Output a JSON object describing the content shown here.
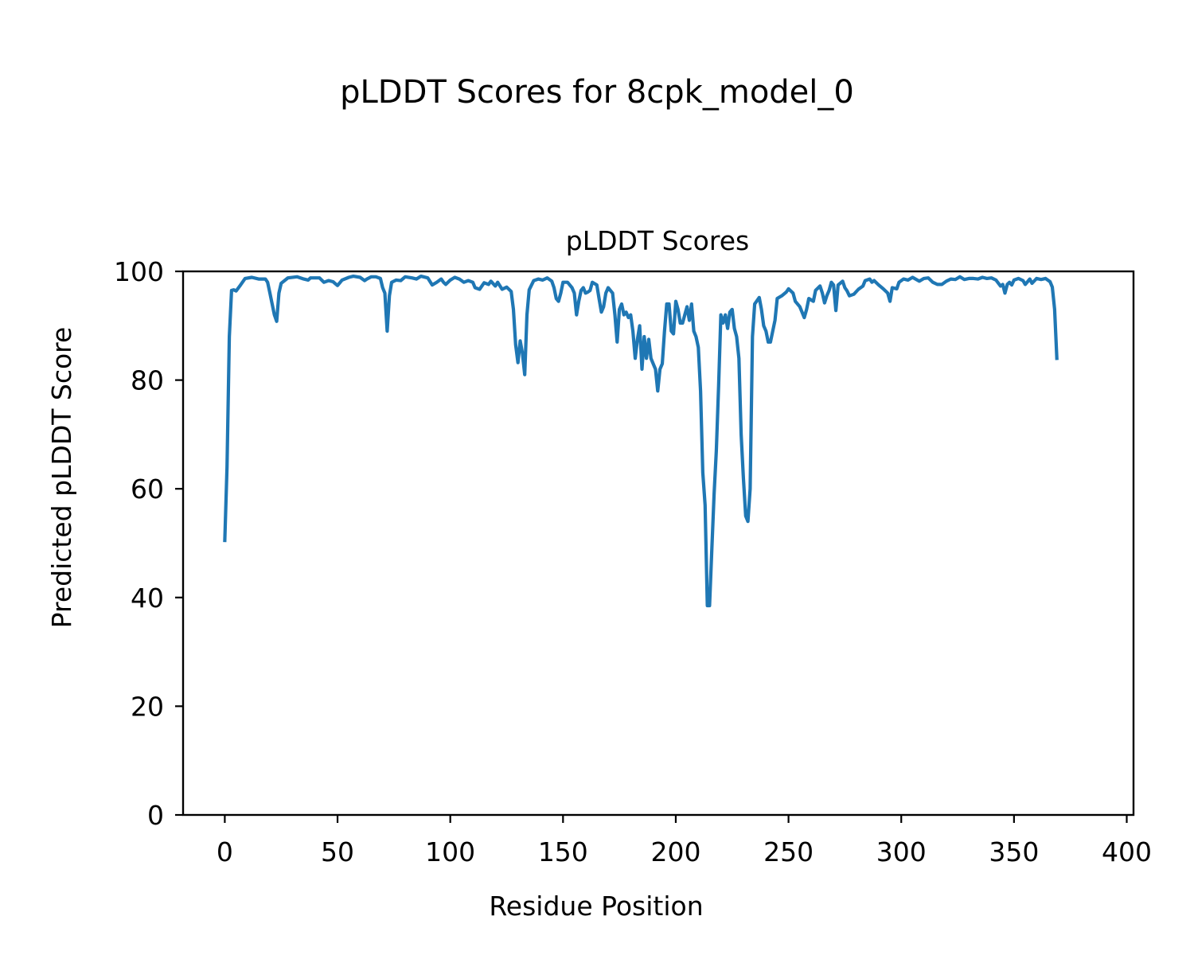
{
  "figure": {
    "suptitle": "pLDDT Scores for 8cpk_model_0"
  },
  "chart_data": {
    "type": "line",
    "title": "pLDDT Scores",
    "xlabel": "Residue Position",
    "ylabel": "Predicted pLDDT Score",
    "xlim": [
      -18.5,
      403
    ],
    "ylim": [
      0,
      100
    ],
    "xticks": [
      0,
      50,
      100,
      150,
      200,
      250,
      300,
      350,
      400
    ],
    "yticks": [
      0,
      20,
      40,
      60,
      80,
      100
    ],
    "grid": false,
    "line_color": "#1f77b4",
    "series": [
      {
        "points": [
          [
            0,
            50.5
          ],
          [
            1,
            64
          ],
          [
            2,
            88
          ],
          [
            3,
            96.5
          ],
          [
            4,
            96.6
          ],
          [
            5,
            96.4
          ],
          [
            7,
            97.5
          ],
          [
            9,
            98.7
          ],
          [
            12,
            98.9
          ],
          [
            15,
            98.6
          ],
          [
            18,
            98.6
          ],
          [
            19,
            98
          ],
          [
            20,
            96
          ],
          [
            21,
            94
          ],
          [
            22,
            92
          ],
          [
            23,
            90.8
          ],
          [
            24,
            96
          ],
          [
            25,
            97.8
          ],
          [
            28,
            98.8
          ],
          [
            32,
            99
          ],
          [
            35,
            98.6
          ],
          [
            37,
            98.4
          ],
          [
            38,
            98.8
          ],
          [
            42,
            98.8
          ],
          [
            44,
            98
          ],
          [
            46,
            98.3
          ],
          [
            48,
            98.1
          ],
          [
            50,
            97.4
          ],
          [
            52,
            98.4
          ],
          [
            55,
            98.9
          ],
          [
            57,
            99.1
          ],
          [
            60,
            98.9
          ],
          [
            62,
            98.3
          ],
          [
            63,
            98.6
          ],
          [
            65,
            99
          ],
          [
            67,
            99
          ],
          [
            69,
            98.7
          ],
          [
            70,
            97
          ],
          [
            71,
            96
          ],
          [
            72,
            89
          ],
          [
            73,
            95.5
          ],
          [
            74,
            98
          ],
          [
            76,
            98.4
          ],
          [
            78,
            98.3
          ],
          [
            80,
            99
          ],
          [
            83,
            98.8
          ],
          [
            85,
            98.6
          ],
          [
            87,
            99.1
          ],
          [
            90,
            98.8
          ],
          [
            92,
            97.5
          ],
          [
            94,
            98
          ],
          [
            96,
            98.6
          ],
          [
            97,
            98
          ],
          [
            98,
            97.6
          ],
          [
            100,
            98.4
          ],
          [
            102,
            98.9
          ],
          [
            104,
            98.6
          ],
          [
            106,
            98
          ],
          [
            108,
            98.3
          ],
          [
            110,
            98
          ],
          [
            111,
            97
          ],
          [
            113,
            96.7
          ],
          [
            115,
            97.9
          ],
          [
            117,
            97.6
          ],
          [
            118,
            98.2
          ],
          [
            120,
            97.3
          ],
          [
            121,
            98
          ],
          [
            123,
            96.7
          ],
          [
            125,
            97.1
          ],
          [
            127,
            96.3
          ],
          [
            128,
            93
          ],
          [
            129,
            86.5
          ],
          [
            130,
            83.2
          ],
          [
            131,
            87.2
          ],
          [
            132,
            85
          ],
          [
            133,
            81
          ],
          [
            134,
            92
          ],
          [
            135,
            96.6
          ],
          [
            137,
            98.3
          ],
          [
            139,
            98.6
          ],
          [
            141,
            98.4
          ],
          [
            143,
            98.8
          ],
          [
            145,
            98.2
          ],
          [
            146,
            97
          ],
          [
            147,
            95
          ],
          [
            148,
            94.5
          ],
          [
            149,
            96
          ],
          [
            150,
            98
          ],
          [
            152,
            98
          ],
          [
            154,
            97
          ],
          [
            155,
            96
          ],
          [
            156,
            92
          ],
          [
            157,
            94.5
          ],
          [
            158,
            96.5
          ],
          [
            159,
            97
          ],
          [
            160,
            96
          ],
          [
            161,
            96.2
          ],
          [
            162,
            96.5
          ],
          [
            163,
            98
          ],
          [
            165,
            97.5
          ],
          [
            166,
            95
          ],
          [
            167,
            92.5
          ],
          [
            168,
            93.5
          ],
          [
            169,
            96
          ],
          [
            170,
            97
          ],
          [
            172,
            96
          ],
          [
            173,
            92
          ],
          [
            174,
            87
          ],
          [
            175,
            93
          ],
          [
            176,
            94
          ],
          [
            177,
            92
          ],
          [
            178,
            92.5
          ],
          [
            179,
            91.5
          ],
          [
            180,
            92
          ],
          [
            181,
            89
          ],
          [
            182,
            84
          ],
          [
            183,
            87.5
          ],
          [
            184,
            90
          ],
          [
            185,
            82
          ],
          [
            186,
            88
          ],
          [
            187,
            84
          ],
          [
            188,
            87.5
          ],
          [
            189,
            84
          ],
          [
            190,
            83
          ],
          [
            191,
            82
          ],
          [
            192,
            78
          ],
          [
            193,
            82
          ],
          [
            194,
            83
          ],
          [
            195,
            89
          ],
          [
            196,
            94
          ],
          [
            197,
            94
          ],
          [
            198,
            89
          ],
          [
            199,
            88.5
          ],
          [
            200,
            94.5
          ],
          [
            201,
            93
          ],
          [
            202,
            90.5
          ],
          [
            203,
            90.5
          ],
          [
            204,
            92
          ],
          [
            205,
            93.5
          ],
          [
            206,
            91
          ],
          [
            207,
            94
          ],
          [
            208,
            89
          ],
          [
            209,
            88
          ],
          [
            210,
            86
          ],
          [
            211,
            78
          ],
          [
            212,
            63
          ],
          [
            213,
            57
          ],
          [
            214,
            38.5
          ],
          [
            215,
            38.5
          ],
          [
            216,
            49
          ],
          [
            217,
            59
          ],
          [
            218,
            67
          ],
          [
            219,
            79
          ],
          [
            220,
            92
          ],
          [
            221,
            90.5
          ],
          [
            222,
            92
          ],
          [
            223,
            89.5
          ],
          [
            224,
            92.5
          ],
          [
            225,
            93
          ],
          [
            226,
            89.5
          ],
          [
            227,
            88
          ],
          [
            228,
            84
          ],
          [
            229,
            70
          ],
          [
            230,
            62
          ],
          [
            231,
            55
          ],
          [
            232,
            54
          ],
          [
            233,
            60
          ],
          [
            234,
            88
          ],
          [
            235,
            94
          ],
          [
            237,
            95.2
          ],
          [
            238,
            93
          ],
          [
            239,
            90
          ],
          [
            240,
            89
          ],
          [
            241,
            87
          ],
          [
            242,
            87
          ],
          [
            244,
            91
          ],
          [
            245,
            95
          ],
          [
            247,
            95.5
          ],
          [
            249,
            96.2
          ],
          [
            250,
            96.8
          ],
          [
            252,
            96
          ],
          [
            253,
            94.5
          ],
          [
            255,
            93.5
          ],
          [
            257,
            91.5
          ],
          [
            258,
            93
          ],
          [
            259,
            95
          ],
          [
            261,
            94.5
          ],
          [
            262,
            96.5
          ],
          [
            264,
            97.3
          ],
          [
            265,
            96
          ],
          [
            266,
            94.2
          ],
          [
            267,
            95.5
          ],
          [
            268,
            96.5
          ],
          [
            269,
            98
          ],
          [
            270,
            97.5
          ],
          [
            271,
            92.8
          ],
          [
            272,
            97.5
          ],
          [
            274,
            98.2
          ],
          [
            275,
            97
          ],
          [
            276,
            96.4
          ],
          [
            277,
            95.5
          ],
          [
            279,
            95.8
          ],
          [
            281,
            96.7
          ],
          [
            283,
            97.3
          ],
          [
            284,
            98.3
          ],
          [
            286,
            98.6
          ],
          [
            287,
            98
          ],
          [
            288,
            98.3
          ],
          [
            290,
            97.5
          ],
          [
            292,
            96.8
          ],
          [
            294,
            96
          ],
          [
            295,
            94.5
          ],
          [
            296,
            97
          ],
          [
            298,
            96.8
          ],
          [
            299,
            98
          ],
          [
            301,
            98.6
          ],
          [
            303,
            98.4
          ],
          [
            305,
            98.9
          ],
          [
            308,
            98.2
          ],
          [
            310,
            98.7
          ],
          [
            312,
            98.8
          ],
          [
            314,
            98
          ],
          [
            316,
            97.6
          ],
          [
            318,
            97.6
          ],
          [
            320,
            98.2
          ],
          [
            322,
            98.6
          ],
          [
            324,
            98.5
          ],
          [
            326,
            99
          ],
          [
            328,
            98.5
          ],
          [
            330,
            98.7
          ],
          [
            332,
            98.7
          ],
          [
            334,
            98.6
          ],
          [
            336,
            98.9
          ],
          [
            338,
            98.7
          ],
          [
            340,
            98.8
          ],
          [
            342,
            98.4
          ],
          [
            344,
            97.3
          ],
          [
            345,
            97.6
          ],
          [
            346,
            96
          ],
          [
            347,
            97.6
          ],
          [
            348,
            98
          ],
          [
            349,
            97.5
          ],
          [
            350,
            98.4
          ],
          [
            352,
            98.7
          ],
          [
            354,
            98.3
          ],
          [
            355,
            97.6
          ],
          [
            356,
            98.1
          ],
          [
            357,
            98.6
          ],
          [
            358,
            97.8
          ],
          [
            360,
            98.7
          ],
          [
            362,
            98.5
          ],
          [
            364,
            98.7
          ],
          [
            366,
            98.1
          ],
          [
            367,
            97.1
          ],
          [
            368,
            93
          ],
          [
            369,
            84
          ]
        ]
      }
    ]
  }
}
